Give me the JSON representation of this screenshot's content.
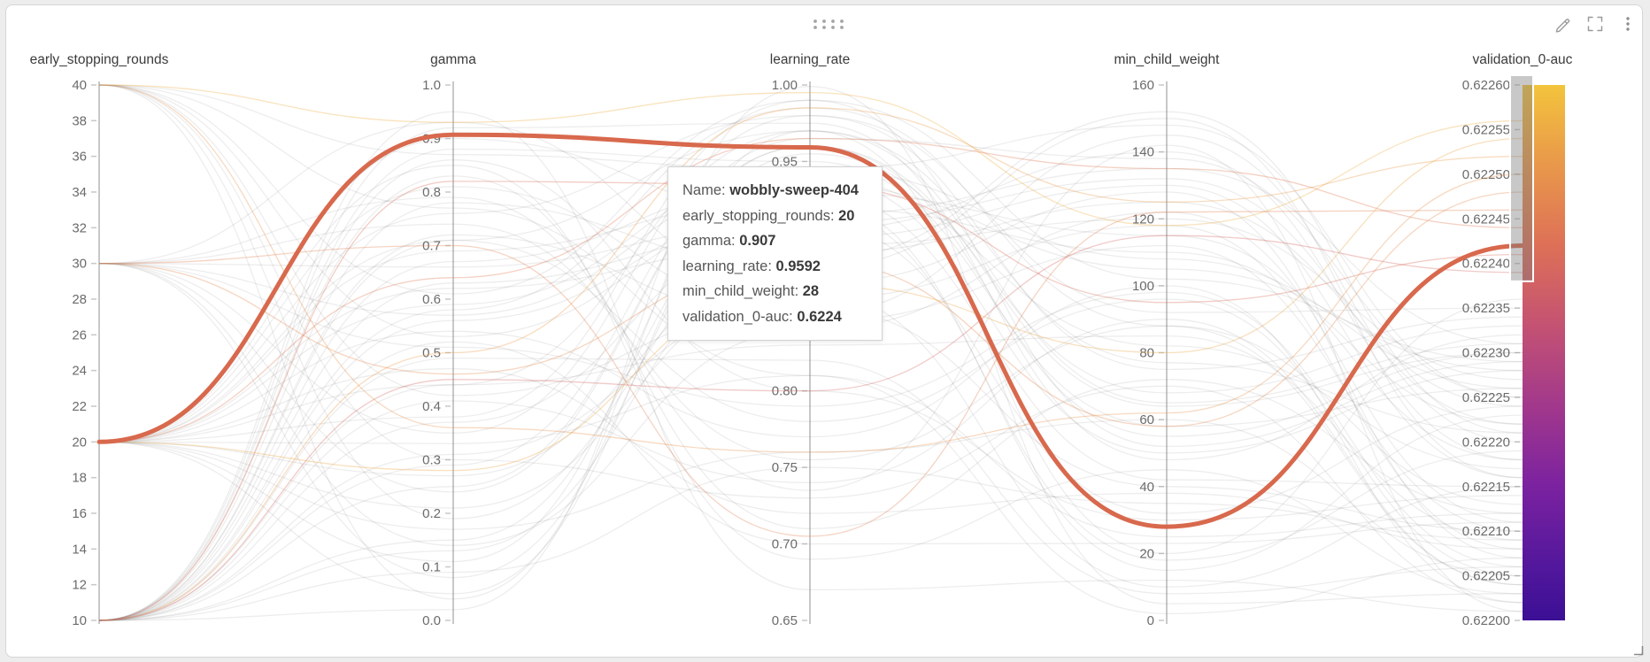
{
  "panel": {
    "type_label": "parallel-coordinates-panel",
    "toolbar": {
      "icons": [
        "drag-handle",
        "edit-pencil",
        "fullscreen",
        "kebab-menu"
      ]
    },
    "resize_handle": "bottom-right"
  },
  "tooltip": {
    "rows": [
      {
        "label": "Name",
        "value": "wobbly-sweep-404"
      },
      {
        "label": "early_stopping_rounds",
        "value": "20"
      },
      {
        "label": "gamma",
        "value": "0.907"
      },
      {
        "label": "learning_rate",
        "value": "0.9592"
      },
      {
        "label": "min_child_weight",
        "value": "28"
      },
      {
        "label": "validation_0-auc",
        "value": "0.6224"
      }
    ]
  },
  "chart_data": {
    "type": "parallel-coordinates",
    "axes": [
      {
        "title": "early_stopping_rounds",
        "min": 10,
        "max": 40,
        "ticks": [
          "40",
          "38",
          "36",
          "34",
          "32",
          "30",
          "28",
          "26",
          "24",
          "22",
          "20",
          "18",
          "16",
          "14",
          "12",
          "10"
        ]
      },
      {
        "title": "gamma",
        "min": 0.0,
        "max": 1.0,
        "ticks": [
          "1.0",
          "0.9",
          "0.8",
          "0.7",
          "0.6",
          "0.5",
          "0.4",
          "0.3",
          "0.2",
          "0.1",
          "0.0"
        ]
      },
      {
        "title": "learning_rate",
        "min": 0.65,
        "max": 1.0,
        "ticks": [
          "1.00",
          "0.95",
          "0.90",
          "0.85",
          "0.80",
          "0.75",
          "0.70",
          "0.65"
        ]
      },
      {
        "title": "min_child_weight",
        "min": 0,
        "max": 160,
        "ticks": [
          "160",
          "140",
          "120",
          "100",
          "80",
          "60",
          "40",
          "20",
          "0"
        ]
      },
      {
        "title": "validation_0-auc",
        "min": 0.622,
        "max": 0.6226,
        "ticks": [
          "0.62260",
          "0.62255",
          "0.62250",
          "0.62245",
          "0.62240",
          "0.62235",
          "0.62230",
          "0.62225",
          "0.62220",
          "0.62215",
          "0.62210",
          "0.62205",
          "0.62200"
        ]
      }
    ],
    "highlighted_run": {
      "name": "wobbly-sweep-404",
      "values": [
        20,
        0.907,
        0.9592,
        28,
        0.62242
      ]
    },
    "brush": {
      "axis": "validation_0-auc",
      "from": 0.62238,
      "to": 0.6226
    },
    "colors": {
      "highlight": "#d8694d",
      "gray_line": "rgba(115,115,115,0.13)",
      "colored_line_alpha": 0.35,
      "axis_line": "#c8c8c8",
      "tick_text": "#6b6b6b",
      "title_text": "#3b3b3b",
      "gradient": [
        [
          0.0,
          "#f3c43c"
        ],
        [
          0.13,
          "#ea9d49"
        ],
        [
          0.3,
          "#dd7057"
        ],
        [
          0.45,
          "#c45273"
        ],
        [
          0.6,
          "#a2388c"
        ],
        [
          0.75,
          "#7b22a0"
        ],
        [
          0.9,
          "#52179c"
        ],
        [
          1.0,
          "#3b0f94"
        ]
      ]
    },
    "runs": [
      [
        10,
        0.02,
        0.999,
        5,
        0.62203
      ],
      [
        10,
        0.15,
        0.93,
        42,
        0.62215
      ],
      [
        10,
        0.31,
        0.86,
        118,
        0.62208
      ],
      [
        10,
        0.44,
        0.97,
        77,
        0.62221
      ],
      [
        10,
        0.52,
        0.7,
        23,
        0.62211
      ],
      [
        10,
        0.63,
        0.905,
        140,
        0.62218
      ],
      [
        10,
        0.71,
        0.78,
        96,
        0.62205
      ],
      [
        10,
        0.88,
        0.95,
        58,
        0.62226
      ],
      [
        10,
        0.95,
        0.67,
        12,
        0.62201
      ],
      [
        10,
        0.37,
        0.91,
        132,
        0.62222
      ],
      [
        10,
        0.58,
        0.985,
        88,
        0.62213
      ],
      [
        10,
        0.09,
        0.75,
        35,
        0.62209
      ],
      [
        10,
        0.78,
        0.88,
        150,
        0.62216
      ],
      [
        10,
        0.25,
        0.96,
        64,
        0.6223
      ],
      [
        10,
        0.49,
        0.82,
        8,
        0.62206
      ],
      [
        10,
        0.67,
        0.935,
        105,
        0.62228
      ],
      [
        10,
        0.83,
        0.71,
        72,
        0.62212
      ],
      [
        10,
        0.13,
        0.89,
        125,
        0.62224
      ],
      [
        10,
        0.92,
        0.975,
        48,
        0.62232
      ],
      [
        10,
        0.41,
        0.74,
        90,
        0.62204
      ],
      [
        10,
        0.56,
        0.92,
        18,
        0.62219
      ],
      [
        10,
        0.72,
        0.845,
        112,
        0.6221
      ],
      [
        10,
        0.29,
        0.965,
        138,
        0.62225
      ],
      [
        10,
        0.86,
        0.8,
        30,
        0.62214
      ],
      [
        20,
        0.05,
        0.94,
        82,
        0.62217
      ],
      [
        20,
        0.21,
        0.87,
        128,
        0.62207
      ],
      [
        20,
        0.38,
        0.99,
        52,
        0.62229
      ],
      [
        20,
        0.54,
        0.77,
        100,
        0.62202
      ],
      [
        20,
        0.69,
        0.925,
        15,
        0.62223
      ],
      [
        20,
        0.81,
        0.85,
        145,
        0.6222
      ],
      [
        20,
        0.11,
        0.955,
        68,
        0.62233
      ],
      [
        20,
        0.47,
        0.72,
        38,
        0.62208
      ],
      [
        20,
        0.62,
        0.895,
        120,
        0.62227
      ],
      [
        20,
        0.76,
        0.98,
        92,
        0.62235
      ],
      [
        20,
        0.33,
        0.81,
        25,
        0.62212
      ],
      [
        20,
        0.9,
        0.915,
        135,
        0.62231
      ],
      [
        20,
        0.17,
        0.76,
        60,
        0.62205
      ],
      [
        20,
        0.59,
        0.945,
        108,
        0.62226
      ],
      [
        20,
        0.85,
        0.69,
        45,
        0.62203
      ],
      [
        20,
        0.27,
        0.885,
        152,
        0.62221
      ],
      [
        20,
        0.71,
        0.97,
        20,
        0.62236
      ],
      [
        20,
        0.44,
        0.83,
        85,
        0.62209
      ],
      [
        30,
        0.08,
        0.93,
        115,
        0.62218
      ],
      [
        30,
        0.24,
        0.96,
        55,
        0.6223
      ],
      [
        30,
        0.51,
        0.79,
        98,
        0.62206
      ],
      [
        30,
        0.66,
        0.91,
        32,
        0.62224
      ],
      [
        30,
        0.79,
        0.735,
        142,
        0.62201
      ],
      [
        30,
        0.35,
        0.98,
        75,
        0.62234
      ],
      [
        30,
        0.93,
        0.865,
        10,
        0.62215
      ],
      [
        30,
        0.14,
        0.84,
        122,
        0.62211
      ],
      [
        30,
        0.57,
        0.94,
        50,
        0.62228
      ],
      [
        30,
        0.74,
        0.755,
        88,
        0.62204
      ],
      [
        40,
        0.04,
        0.97,
        65,
        0.62231
      ],
      [
        40,
        0.19,
        0.9,
        130,
        0.62216
      ],
      [
        40,
        0.42,
        0.855,
        40,
        0.6221
      ],
      [
        40,
        0.61,
        0.99,
        102,
        0.62229
      ],
      [
        40,
        0.77,
        0.81,
        2,
        0.62207
      ],
      [
        40,
        0.87,
        0.945,
        148,
        0.62225
      ],
      [
        40,
        0.3,
        0.73,
        70,
        0.62202
      ],
      [
        40,
        0.53,
        0.92,
        110,
        0.62222
      ],
      [
        40,
        0.93,
        0.995,
        118,
        0.62256
      ],
      [
        10,
        0.5,
        0.985,
        125,
        0.62252
      ],
      [
        30,
        0.46,
        0.885,
        58,
        0.62248
      ],
      [
        20,
        0.64,
        0.965,
        135,
        0.62244
      ],
      [
        10,
        0.82,
        0.935,
        95,
        0.62241
      ],
      [
        40,
        0.36,
        0.76,
        62,
        0.6225
      ],
      [
        10,
        0.45,
        0.8,
        115,
        0.62239
      ],
      [
        30,
        0.7,
        0.705,
        122,
        0.62246
      ],
      [
        20,
        0.28,
        0.87,
        80,
        0.62254
      ]
    ]
  }
}
